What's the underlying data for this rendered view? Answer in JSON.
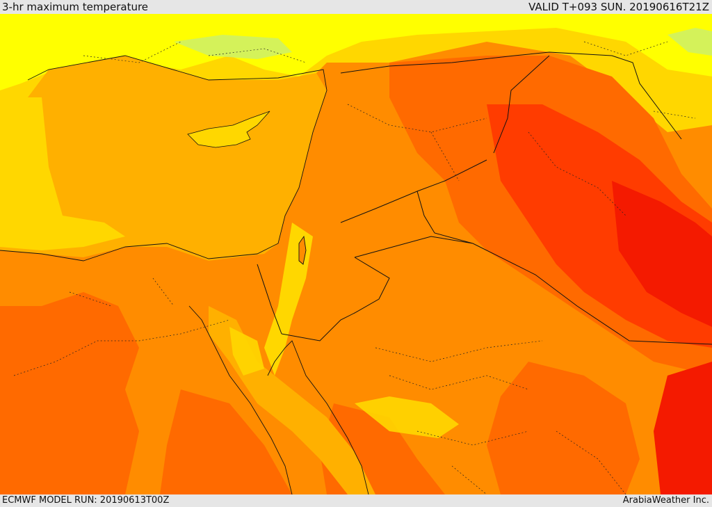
{
  "header": {
    "title": "3-hr maximum temperature",
    "valid": "VALID T+093 SUN. 20190616T21Z"
  },
  "footer": {
    "model_run": "ECMWF MODEL RUN: 20190613T00Z",
    "credit": "ArabiaWeather Inc."
  },
  "colors": {
    "pale_green": "#ccf06a",
    "yellow": "#ffff00",
    "yellow_orange": "#ffd700",
    "orange_light": "#ffb000",
    "orange": "#ff8c00",
    "orange_dark": "#ff6a00",
    "red_orange": "#ff3c00",
    "red": "#f41a00",
    "boundary": "#111111"
  }
}
